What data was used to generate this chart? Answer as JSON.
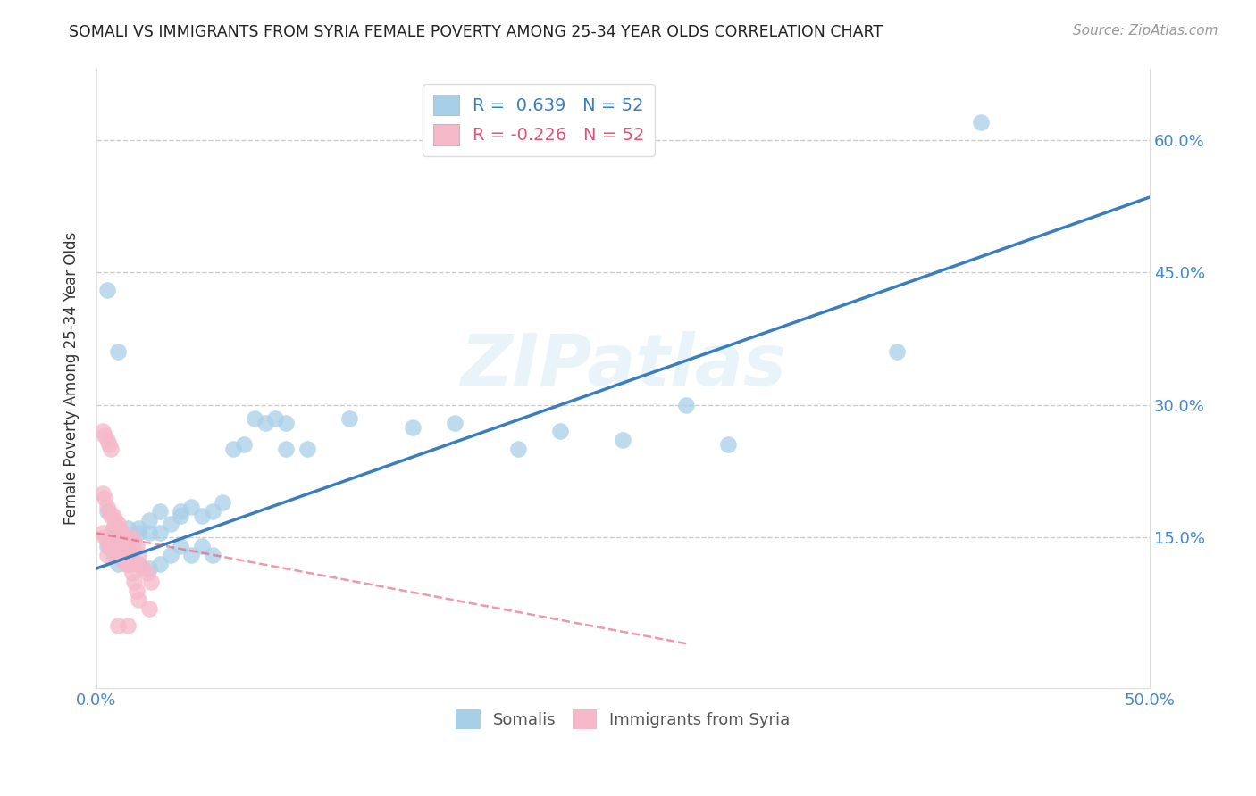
{
  "title": "SOMALI VS IMMIGRANTS FROM SYRIA FEMALE POVERTY AMONG 25-34 YEAR OLDS CORRELATION CHART",
  "source": "Source: ZipAtlas.com",
  "ylabel": "Female Poverty Among 25-34 Year Olds",
  "xlim": [
    0.0,
    0.5
  ],
  "ylim": [
    -0.02,
    0.68
  ],
  "blue_R": 0.639,
  "pink_R": -0.226,
  "N": 52,
  "blue_color": "#a8cfe8",
  "pink_color": "#f5b8c8",
  "blue_line_color": "#3a7ebe",
  "pink_line_color": "#e05575",
  "watermark": "ZIPatlas",
  "blue_line_x": [
    0.0,
    0.5
  ],
  "blue_line_y": [
    0.115,
    0.535
  ],
  "pink_line_x": [
    0.0,
    0.28
  ],
  "pink_line_y": [
    0.155,
    0.03
  ],
  "somali_x": [
    0.005,
    0.008,
    0.01,
    0.01,
    0.012,
    0.015,
    0.015,
    0.02,
    0.02,
    0.025,
    0.025,
    0.03,
    0.03,
    0.035,
    0.04,
    0.04,
    0.045,
    0.05,
    0.055,
    0.06,
    0.065,
    0.07,
    0.075,
    0.08,
    0.085,
    0.09,
    0.09,
    0.1,
    0.12,
    0.15,
    0.17,
    0.2,
    0.22,
    0.25,
    0.28,
    0.3,
    0.005,
    0.01,
    0.015,
    0.02,
    0.025,
    0.03,
    0.035,
    0.04,
    0.045,
    0.05,
    0.055,
    0.38,
    0.42,
    0.005,
    0.008,
    0.01
  ],
  "somali_y": [
    0.18,
    0.16,
    0.155,
    0.14,
    0.155,
    0.145,
    0.16,
    0.155,
    0.16,
    0.155,
    0.17,
    0.155,
    0.18,
    0.165,
    0.18,
    0.175,
    0.185,
    0.175,
    0.18,
    0.19,
    0.25,
    0.255,
    0.285,
    0.28,
    0.285,
    0.28,
    0.25,
    0.25,
    0.285,
    0.275,
    0.28,
    0.25,
    0.27,
    0.26,
    0.3,
    0.255,
    0.43,
    0.36,
    0.13,
    0.12,
    0.115,
    0.12,
    0.13,
    0.14,
    0.13,
    0.14,
    0.13,
    0.36,
    0.62,
    0.14,
    0.13,
    0.12
  ],
  "syria_x": [
    0.003,
    0.004,
    0.005,
    0.005,
    0.006,
    0.007,
    0.008,
    0.009,
    0.01,
    0.01,
    0.011,
    0.012,
    0.013,
    0.014,
    0.015,
    0.015,
    0.016,
    0.017,
    0.018,
    0.019,
    0.02,
    0.02,
    0.022,
    0.024,
    0.026,
    0.003,
    0.004,
    0.005,
    0.006,
    0.007,
    0.008,
    0.009,
    0.01,
    0.011,
    0.012,
    0.013,
    0.014,
    0.015,
    0.016,
    0.017,
    0.018,
    0.019,
    0.02,
    0.025,
    0.003,
    0.004,
    0.005,
    0.006,
    0.007,
    0.008,
    0.01,
    0.015
  ],
  "syria_y": [
    0.155,
    0.15,
    0.145,
    0.13,
    0.14,
    0.14,
    0.135,
    0.135,
    0.13,
    0.14,
    0.13,
    0.125,
    0.125,
    0.12,
    0.12,
    0.145,
    0.14,
    0.15,
    0.145,
    0.14,
    0.13,
    0.12,
    0.115,
    0.11,
    0.1,
    0.27,
    0.265,
    0.26,
    0.255,
    0.25,
    0.175,
    0.17,
    0.165,
    0.16,
    0.155,
    0.15,
    0.145,
    0.14,
    0.12,
    0.11,
    0.1,
    0.09,
    0.08,
    0.07,
    0.2,
    0.195,
    0.185,
    0.18,
    0.175,
    0.16,
    0.05,
    0.05
  ]
}
